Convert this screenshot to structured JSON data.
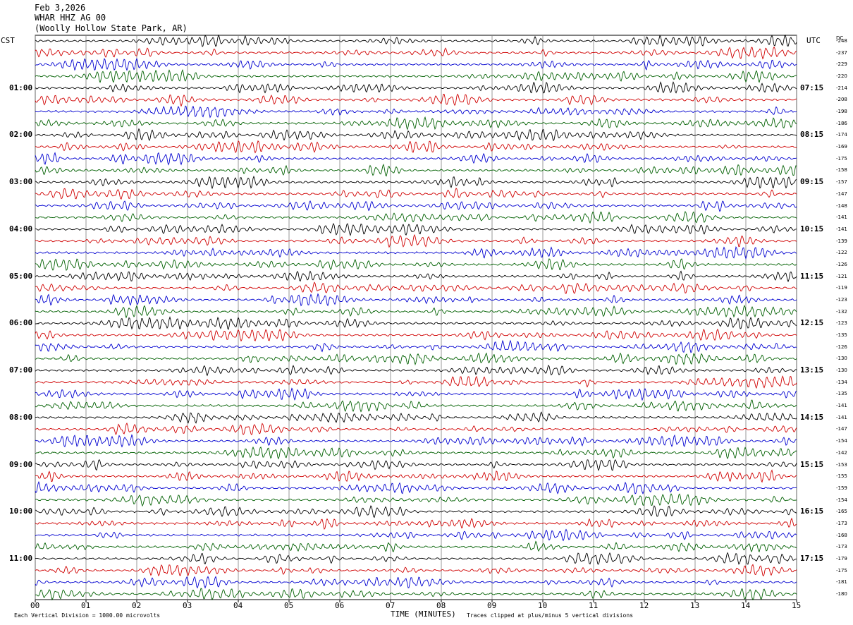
{
  "header": {
    "date": "Feb 3,2026",
    "station": "WHAR HHZ AG 00",
    "location": "(Woolly Hollow State Park, AR)"
  },
  "labels": {
    "left_tz": "CST",
    "right_tz": "UTC",
    "dc_label": "DC"
  },
  "footer": {
    "scale": "Each Vertical Division = 1000.00 microvolts",
    "clip": "Traces clipped at plus/minus 5 vertical divisions"
  },
  "colors": {
    "trace_cycle": [
      "#000000",
      "#d00000",
      "#0000d0",
      "#006000"
    ],
    "grid": "#808080"
  },
  "chart_data": {
    "type": "line",
    "xlabel": "TIME (MINUTES)",
    "x_ticks": [
      "00",
      "01",
      "02",
      "03",
      "04",
      "05",
      "06",
      "07",
      "08",
      "09",
      "10",
      "11",
      "12",
      "13",
      "14",
      "15"
    ],
    "xlim": [
      0,
      15
    ],
    "traces_per_hour": 4,
    "left_hour_labels": [
      "01:00",
      "02:00",
      "03:00",
      "04:00",
      "05:00",
      "06:00",
      "07:00",
      "08:00",
      "09:00",
      "10:00",
      "11:00"
    ],
    "right_hour_labels": [
      "07:15",
      "08:15",
      "09:15",
      "10:15",
      "11:15",
      "12:15",
      "13:15",
      "14:15",
      "15:15",
      "16:15",
      "17:15"
    ],
    "dc_offsets": [
      "-248",
      "-237",
      "-229",
      "-220",
      "-214",
      "-208",
      "-198",
      "-186",
      "-174",
      "-169",
      "-175",
      "-158",
      "-157",
      "-147",
      "-148",
      "-141",
      "-141",
      "-139",
      "-122",
      "-126",
      "-121",
      "-119",
      "-123",
      "-132",
      "-123",
      "-135",
      "-126",
      "-130",
      "-130",
      "-134",
      "-135",
      "-141",
      "-141",
      "-147",
      "-154",
      "-142",
      "-153",
      "-155",
      "-159",
      "-154",
      "-165",
      "-173",
      "-168",
      "-173",
      "-179",
      "-175",
      "-181",
      "-180"
    ]
  }
}
